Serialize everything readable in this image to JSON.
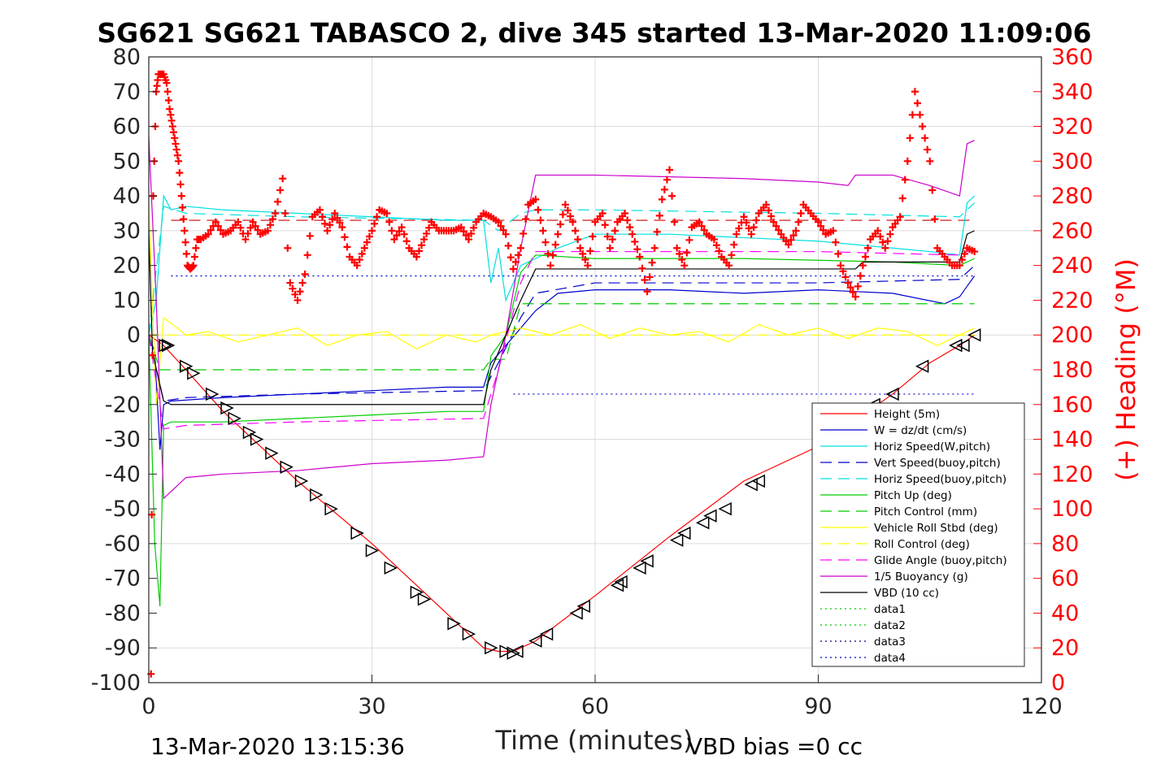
{
  "chart_data": {
    "type": "line",
    "title": "SG621 SG621 TABASCO 2, dive 345 started 13-Mar-2020 11:09:06",
    "xlabel": "Time (minutes)",
    "ylabel_right": "(+) Heading (°M)",
    "xlim": [
      0,
      120
    ],
    "ylim": [
      -100,
      80
    ],
    "ylim_right": [
      0,
      360
    ],
    "x_ticks": [
      "0",
      "30",
      "60",
      "90",
      "120"
    ],
    "y_ticks": [
      "80",
      "70",
      "60",
      "50",
      "40",
      "30",
      "20",
      "10",
      "0",
      "-10",
      "-20",
      "-30",
      "-40",
      "-50",
      "-60",
      "-70",
      "-80",
      "-90",
      "-100"
    ],
    "y_ticks_right": [
      "360",
      "340",
      "320",
      "300",
      "280",
      "260",
      "240",
      "220",
      "200",
      "180",
      "160",
      "140",
      "120",
      "100",
      "80",
      "60",
      "40",
      "20",
      "0"
    ],
    "footer_left": "13-Mar-2020 13:15:36",
    "footer_right": "VBD bias =0 cc",
    "grid": true,
    "legend_position": "lower-right",
    "colors": {
      "axis": "#262626",
      "heading": "#ff0000",
      "grid": "#dcdcdc"
    },
    "series": [
      {
        "name": "Height (5m)",
        "color": "#ff0000",
        "style": "solid",
        "x": [
          0,
          2,
          5,
          10,
          20,
          30,
          40,
          45,
          47,
          49,
          52,
          60,
          70,
          80,
          90,
          100,
          105,
          109,
          111
        ],
        "y": [
          0,
          -3,
          -10,
          -22,
          -42,
          -60,
          -80,
          -90,
          -91,
          -91,
          -88,
          -75,
          -58,
          -42,
          -32,
          -17,
          -8,
          -3,
          0
        ]
      },
      {
        "name": "W = dz/dt (cm/s)",
        "color": "#0000cc",
        "style": "solid",
        "x": [
          0,
          0.8,
          1.5,
          2,
          3,
          10,
          20,
          30,
          40,
          45,
          46,
          48,
          50,
          52,
          55,
          60,
          70,
          80,
          90,
          100,
          107,
          109,
          110,
          111
        ],
        "y": [
          0,
          -5,
          -33,
          -20,
          -19,
          -18,
          -17,
          -16,
          -15,
          -15,
          -8,
          -3,
          2,
          7,
          12,
          13,
          13,
          12,
          13,
          12,
          9,
          11,
          14,
          17
        ]
      },
      {
        "name": "Horiz Speed(W,pitch)",
        "color": "#00e0e0",
        "style": "solid",
        "x": [
          0,
          1,
          2,
          3,
          5,
          10,
          20,
          30,
          40,
          45,
          46,
          47,
          48,
          50,
          52,
          55,
          60,
          70,
          80,
          90,
          100,
          105,
          109,
          110,
          111
        ],
        "y": [
          0,
          10,
          40,
          36,
          37,
          36,
          35,
          34,
          33,
          33,
          15,
          25,
          10,
          20,
          22,
          25,
          29,
          29,
          28,
          27,
          25,
          24,
          23,
          38,
          40
        ]
      },
      {
        "name": "Vert Speed(buoy,pitch)",
        "color": "#0000cc",
        "style": "dashed",
        "x": [
          0,
          2,
          5,
          20,
          45,
          47,
          50,
          52,
          60,
          90,
          109,
          111
        ],
        "y": [
          0,
          -19,
          -18,
          -17,
          -16,
          -8,
          5,
          12,
          15,
          15,
          16,
          20
        ]
      },
      {
        "name": "Horiz Speed(buoy,pitch)",
        "color": "#00e0e0",
        "style": "dashed",
        "x": [
          0,
          2,
          5,
          20,
          45,
          47,
          50,
          52,
          60,
          90,
          109,
          111
        ],
        "y": [
          0,
          37,
          35,
          34,
          33,
          30,
          35,
          36,
          36,
          35,
          34,
          38
        ]
      },
      {
        "name": "Pitch Up (deg)",
        "color": "#00cc00",
        "style": "solid",
        "x": [
          0,
          0.8,
          1.5,
          2,
          3,
          10,
          20,
          30,
          40,
          45,
          46,
          48,
          50,
          52,
          60,
          80,
          100,
          109,
          111
        ],
        "y": [
          0,
          -60,
          -78,
          -26,
          -25,
          -25,
          -24,
          -23,
          -22,
          -22,
          -6,
          0,
          18,
          23,
          22,
          22,
          21,
          20,
          22
        ]
      },
      {
        "name": "Pitch Control (mm)",
        "color": "#00cc00",
        "style": "dashed",
        "x": [
          0,
          1.5,
          2,
          45,
          46,
          48,
          50,
          52,
          111
        ],
        "y": [
          0,
          -10,
          -10,
          -10,
          -7,
          -7,
          9,
          9,
          9
        ]
      },
      {
        "name": "Vehicle Roll Stbd (deg)",
        "color": "#ffff00",
        "style": "solid",
        "x": [
          0,
          1,
          2,
          5,
          8,
          12,
          16,
          20,
          24,
          28,
          32,
          36,
          40,
          44,
          46,
          50,
          54,
          58,
          62,
          66,
          70,
          74,
          78,
          82,
          86,
          90,
          94,
          98,
          102,
          106,
          109,
          111
        ],
        "y": [
          38,
          -20,
          5,
          0,
          1,
          -2,
          0,
          2,
          -3,
          0,
          1,
          -4,
          0,
          -2,
          0,
          2,
          0,
          3,
          -1,
          2,
          0,
          1,
          -2,
          3,
          0,
          2,
          -1,
          2,
          1,
          -3,
          0,
          2
        ]
      },
      {
        "name": "Roll Control (deg)",
        "color": "#ffff00",
        "style": "dashed",
        "x": [
          0,
          111
        ],
        "y": [
          0,
          0
        ]
      },
      {
        "name": "Glide Angle (buoy,pitch)",
        "color": "#ff00ff",
        "style": "dashed",
        "x": [
          0,
          2,
          5,
          20,
          45,
          47,
          50,
          52,
          60,
          90,
          109,
          111
        ],
        "y": [
          0,
          -27,
          -26,
          -25,
          -24,
          -10,
          15,
          24,
          24,
          24,
          23,
          25
        ]
      },
      {
        "name": "1/5 Buoyancy (g)",
        "color": "#cc00cc",
        "style": "solid",
        "x": [
          0,
          1,
          2,
          3,
          5,
          10,
          20,
          30,
          40,
          45,
          46,
          48,
          50,
          52,
          60,
          80,
          90,
          94,
          95,
          100,
          105,
          109,
          110,
          111
        ],
        "y": [
          57,
          10,
          -47,
          -45,
          -41,
          -40,
          -39,
          -37,
          -36,
          -35,
          -20,
          0,
          25,
          46,
          46,
          45,
          44,
          43,
          46,
          46,
          43,
          40,
          55,
          56
        ]
      },
      {
        "name": "VBD (10 cc)",
        "color": "#000000",
        "style": "solid",
        "x": [
          0,
          0.5,
          2,
          3,
          45,
          46,
          48,
          50,
          52,
          60,
          90,
          95,
          96,
          109,
          110,
          111
        ],
        "y": [
          30,
          -5,
          -19,
          -20,
          -20,
          -10,
          0,
          10,
          19,
          19,
          19,
          19,
          21,
          21,
          29,
          30
        ]
      },
      {
        "name": "data1",
        "color": "#00cc00",
        "style": "dotted",
        "x": [],
        "y": []
      },
      {
        "name": "data2",
        "color": "#00cc00",
        "style": "dotted",
        "x": [],
        "y": []
      },
      {
        "name": "data3",
        "color": "#000080",
        "style": "dotted",
        "x": [],
        "y": []
      },
      {
        "name": "data4",
        "color": "#0000cc",
        "style": "dotted",
        "x": [],
        "y": []
      }
    ],
    "reference_lines": [
      {
        "color": "#0000cc",
        "style": "dotted",
        "x": [
          3,
          111
        ],
        "y": [
          17,
          17
        ]
      },
      {
        "color": "#0000cc",
        "style": "dotted",
        "x": [
          49,
          111
        ],
        "y": [
          -17,
          -17
        ]
      },
      {
        "color": "#cc0000",
        "style": "dashed",
        "x": [
          3,
          111
        ],
        "y": [
          33,
          33
        ]
      }
    ],
    "depth_markers": {
      "down": [
        [
          2.2,
          -3
        ],
        [
          2.6,
          -3
        ],
        [
          5,
          -9
        ],
        [
          6,
          -11
        ],
        [
          8.5,
          -17
        ],
        [
          10.5,
          -21
        ],
        [
          11.5,
          -24
        ],
        [
          13.5,
          -28
        ],
        [
          14.5,
          -30
        ],
        [
          16.5,
          -34
        ],
        [
          18.5,
          -38
        ],
        [
          20.5,
          -42
        ],
        [
          22.5,
          -46
        ],
        [
          24.5,
          -50
        ],
        [
          28,
          -57
        ],
        [
          30,
          -62
        ],
        [
          32.5,
          -67
        ],
        [
          36,
          -74
        ],
        [
          37,
          -76
        ],
        [
          41,
          -83
        ],
        [
          43,
          -86
        ],
        [
          46,
          -90
        ],
        [
          48,
          -91
        ],
        [
          49,
          -91.5
        ]
      ],
      "up": [
        [
          49.5,
          -91
        ],
        [
          52,
          -88
        ],
        [
          53.5,
          -86
        ],
        [
          57.5,
          -80
        ],
        [
          58.5,
          -78
        ],
        [
          63,
          -72
        ],
        [
          63.5,
          -71
        ],
        [
          66,
          -67
        ],
        [
          67,
          -65
        ],
        [
          71,
          -59
        ],
        [
          72,
          -57
        ],
        [
          74.5,
          -54
        ],
        [
          75.5,
          -52
        ],
        [
          77.5,
          -50
        ],
        [
          81,
          -43
        ],
        [
          82,
          -42
        ],
        [
          90,
          -33
        ],
        [
          97.5,
          -20
        ],
        [
          100,
          -17
        ],
        [
          104,
          -9
        ],
        [
          108.5,
          -3
        ],
        [
          109.5,
          -3
        ],
        [
          111,
          0
        ]
      ]
    },
    "heading": {
      "name": "(+) Heading",
      "color": "#ff0000",
      "marker": "+",
      "x": [
        0.3,
        0.6,
        1,
        1.3,
        1.6,
        2,
        2.4,
        2.8,
        3.2,
        3.6,
        4,
        4.4,
        4.8,
        5.2,
        5.6,
        6,
        6.5,
        7,
        8,
        9,
        10,
        11,
        12,
        13,
        14,
        15,
        16,
        17,
        18,
        19,
        20,
        21,
        22,
        23,
        24,
        25,
        26,
        27,
        28,
        29,
        30,
        31,
        32,
        33,
        34,
        35,
        36,
        37,
        38,
        39,
        40,
        41,
        42,
        43,
        44,
        45,
        46,
        47,
        48,
        49,
        50,
        51,
        52,
        53,
        54,
        55,
        56,
        57,
        58,
        59,
        60,
        61,
        62,
        63,
        64,
        65,
        66,
        67,
        68,
        69,
        70,
        71,
        72,
        73,
        74,
        75,
        76,
        77,
        78,
        79,
        80,
        81,
        82,
        83,
        84,
        85,
        86,
        87,
        88,
        89,
        90,
        91,
        92,
        93,
        94,
        95,
        96,
        97,
        98,
        99,
        100,
        101,
        102,
        103,
        104,
        105,
        106,
        107,
        108,
        109,
        110,
        111
      ],
      "y": [
        5,
        280,
        340,
        350,
        350,
        350,
        345,
        330,
        320,
        310,
        300,
        280,
        260,
        240,
        238,
        240,
        255,
        255,
        258,
        265,
        258,
        260,
        265,
        255,
        265,
        258,
        260,
        270,
        290,
        230,
        220,
        235,
        268,
        272,
        260,
        270,
        262,
        245,
        240,
        250,
        260,
        272,
        270,
        255,
        262,
        250,
        245,
        255,
        265,
        260,
        260,
        260,
        262,
        255,
        265,
        270,
        268,
        265,
        258,
        238,
        250,
        275,
        278,
        260,
        240,
        258,
        275,
        265,
        250,
        240,
        265,
        270,
        250,
        265,
        270,
        258,
        245,
        225,
        250,
        278,
        295,
        250,
        240,
        262,
        265,
        258,
        255,
        245,
        240,
        258,
        268,
        258,
        270,
        275,
        265,
        258,
        252,
        260,
        275,
        270,
        265,
        258,
        260,
        240,
        230,
        222,
        240,
        255,
        260,
        250,
        262,
        268,
        300,
        340,
        320,
        300,
        250,
        245,
        240,
        240,
        250,
        248
      ]
    }
  }
}
